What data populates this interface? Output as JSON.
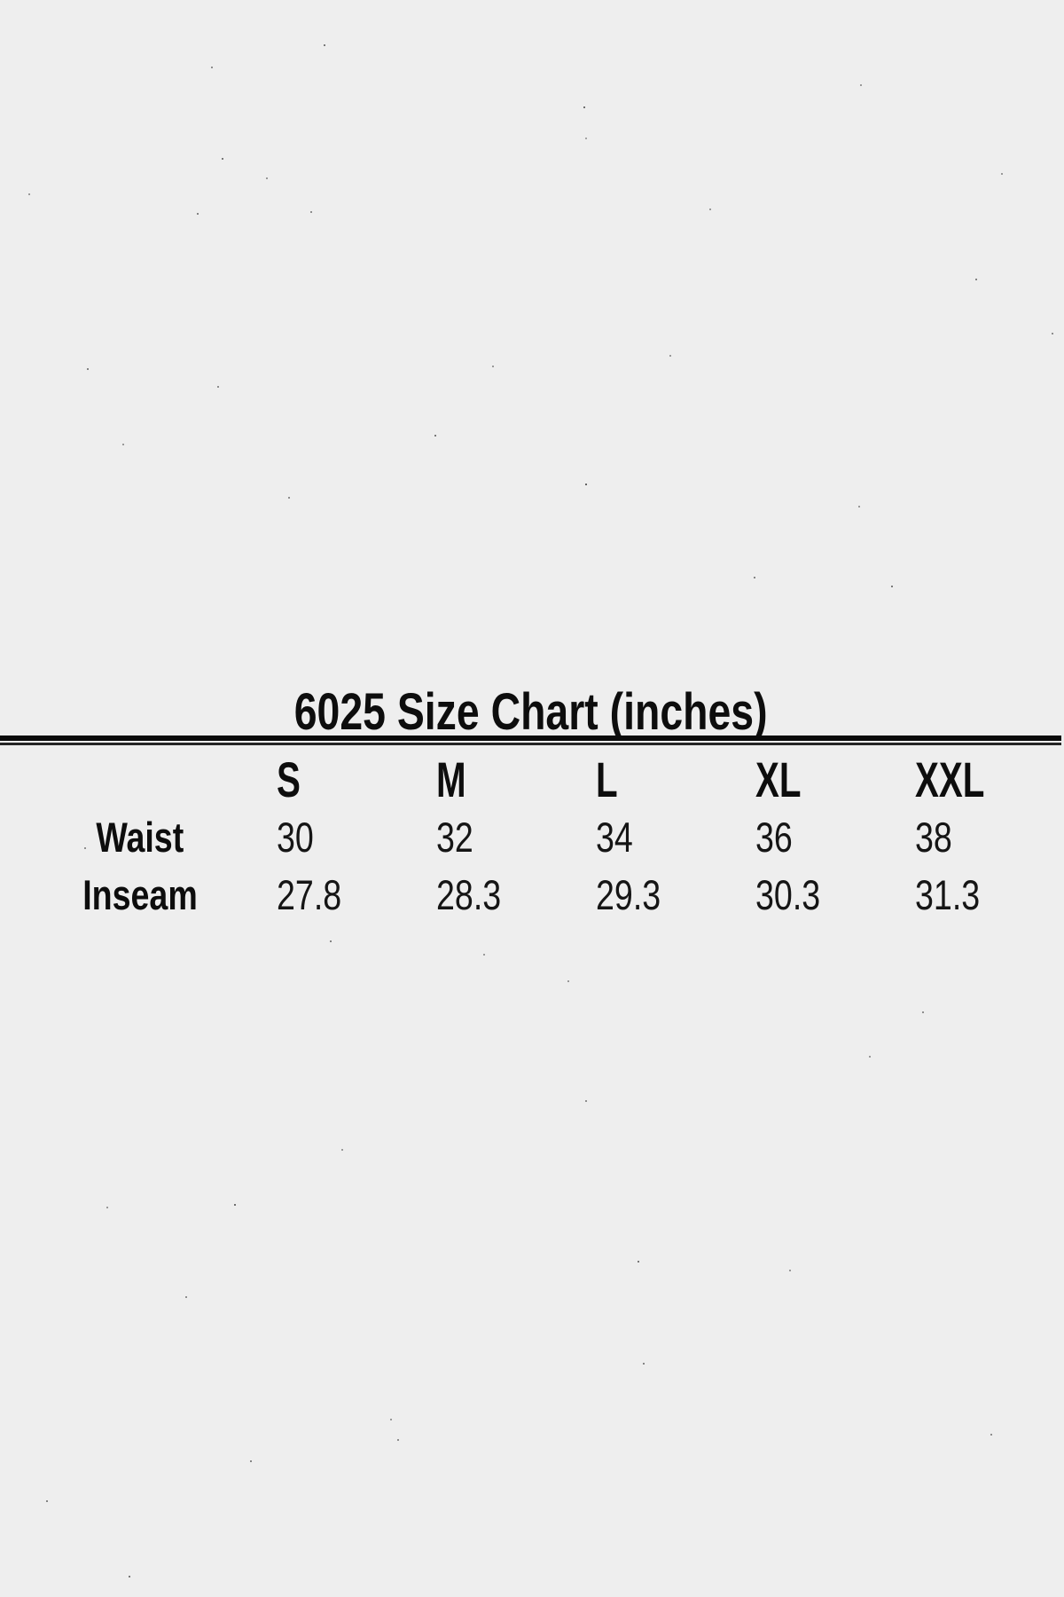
{
  "colors": {
    "background": "#eeeeee",
    "text": "#111111",
    "rule": "#0b0b0b"
  },
  "chart_data": {
    "type": "table",
    "title": "6025 Size Chart (inches)",
    "units": "inches",
    "columns": [
      "S",
      "M",
      "L",
      "XL",
      "XXL"
    ],
    "rows": [
      {
        "label": "Waist",
        "values": [
          "30",
          "32",
          "34",
          "36",
          "38"
        ]
      },
      {
        "label": "Inseam",
        "values": [
          "27.8",
          "28.3",
          "29.3",
          "30.3",
          "31.3"
        ]
      }
    ]
  }
}
